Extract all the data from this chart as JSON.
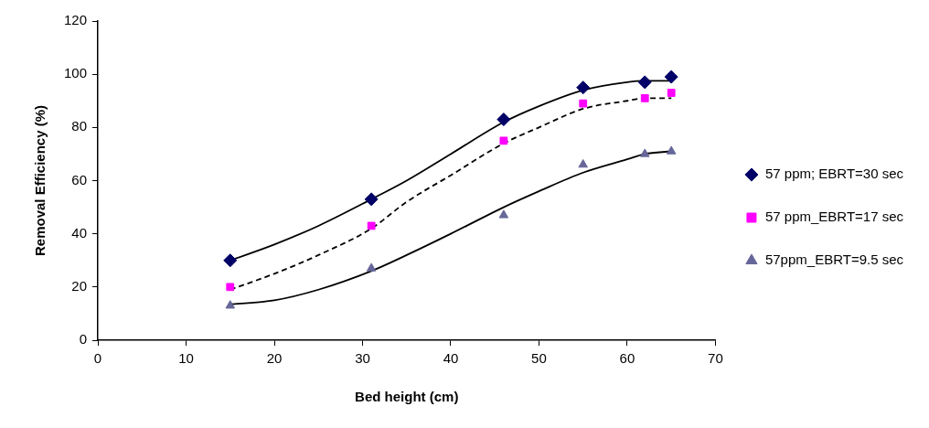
{
  "chart_data": {
    "type": "scatter",
    "xlabel": "Bed height (cm)",
    "ylabel": "Removal Efficiency (%)",
    "xlim": [
      0,
      70
    ],
    "xticks": [
      0,
      10,
      20,
      30,
      40,
      50,
      60,
      70
    ],
    "ylim": [
      0,
      120
    ],
    "yticks": [
      0,
      20,
      40,
      60,
      80,
      100,
      120
    ],
    "grid": false,
    "legend": "right",
    "series": [
      {
        "name": "57 ppm; EBRT=30 sec",
        "marker": "diamond",
        "color": "#000066",
        "x": [
          15,
          31,
          46,
          55,
          62,
          65
        ],
        "values": [
          30,
          53,
          83,
          95,
          97,
          99
        ]
      },
      {
        "name": "57 ppm_EBRT=17 sec",
        "marker": "square",
        "color": "#ff00ff",
        "x": [
          15,
          31,
          46,
          55,
          62,
          65
        ],
        "values": [
          20,
          43,
          75,
          89,
          91,
          93
        ]
      },
      {
        "name": "57ppm_EBRT=9.5 sec",
        "marker": "triangle",
        "color": "#666699",
        "x": [
          15,
          31,
          46,
          55,
          62,
          65
        ],
        "values": [
          13,
          27,
          47,
          66,
          70,
          71
        ]
      },
      {
        "type": "line",
        "marker": "none",
        "line_style": "solid",
        "color": "#000000",
        "x": [
          15,
          20,
          25,
          31,
          35,
          40,
          46,
          50,
          55,
          60,
          62,
          65
        ],
        "values": [
          30,
          36,
          43,
          53,
          60,
          70,
          82,
          88,
          94,
          97,
          97.5,
          97.5
        ]
      },
      {
        "type": "line",
        "marker": "none",
        "line_style": "dashed",
        "color": "#000000",
        "x": [
          15,
          20,
          25,
          31,
          35,
          40,
          46,
          50,
          55,
          60,
          62,
          65
        ],
        "values": [
          19,
          25,
          32,
          42,
          52,
          62,
          74,
          80,
          87,
          90,
          91,
          91
        ]
      },
      {
        "type": "line",
        "marker": "none",
        "line_style": "solid",
        "color": "#000000",
        "x": [
          15,
          20,
          25,
          31,
          35,
          40,
          46,
          50,
          55,
          60,
          62,
          65
        ],
        "values": [
          13.5,
          15,
          19,
          26,
          32,
          40,
          50,
          56,
          63,
          68,
          70,
          71
        ]
      }
    ]
  }
}
